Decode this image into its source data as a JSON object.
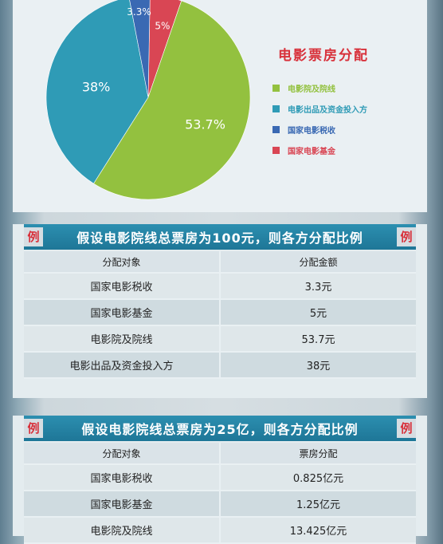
{
  "chart_data": {
    "type": "pie",
    "title": "电影票房分配",
    "slices": [
      {
        "name": "电影院及院线",
        "value": 53.7,
        "label": "53.7%",
        "color": "#93c13f"
      },
      {
        "name": "电影出品及资金投入方",
        "value": 38,
        "label": "38%",
        "color": "#2f9bb6"
      },
      {
        "name": "国家电影税收",
        "value": 3.3,
        "label": "3.3%",
        "color": "#3a69b3"
      },
      {
        "name": "国家电影基金",
        "value": 5,
        "label": "5%",
        "color": "#d94654"
      }
    ],
    "legend_position": "right"
  },
  "colors": {
    "accent_red": "#d8313b",
    "header_blue": "#2284a6"
  },
  "tables": [
    {
      "badge": "例",
      "heading": "假设电影院线总票房为100元，则各方分配比例",
      "columns": [
        "分配对象",
        "分配金额"
      ],
      "rows": [
        [
          "国家电影税收",
          "3.3元"
        ],
        [
          "国家电影基金",
          "5元"
        ],
        [
          "电影院及院线",
          "53.7元"
        ],
        [
          "电影出品及资金投入方",
          "38元"
        ]
      ]
    },
    {
      "badge": "例",
      "heading": "假设电影院线总票房为25亿，则各方分配比例",
      "columns": [
        "分配对象",
        "票房分配"
      ],
      "rows": [
        [
          "国家电影税收",
          "0.825亿元"
        ],
        [
          "国家电影基金",
          "1.25亿元"
        ],
        [
          "电影院及院线",
          "13.425亿元"
        ]
      ]
    }
  ]
}
